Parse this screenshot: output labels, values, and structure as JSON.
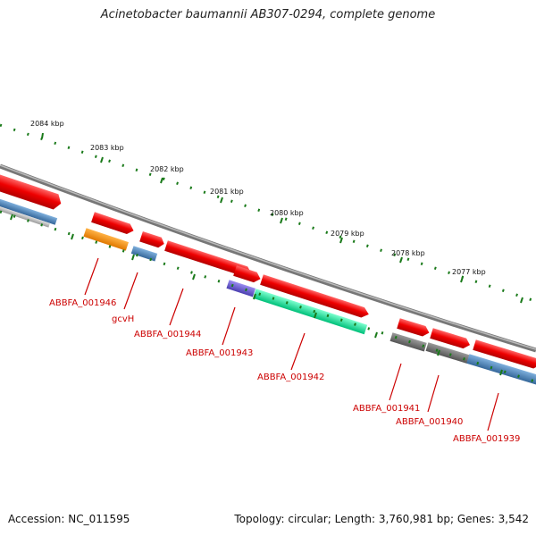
{
  "title": "Acinetobacter baumannii AB307-0294, complete genome",
  "footer": {
    "accession": "Accession: NC_011595",
    "stats": "Topology: circular; Length: 3,760,981 bp; Genes: 3,542"
  },
  "scale_labels": [
    "2084 kbp",
    "2083 kbp",
    "2082 kbp",
    "2081 kbp",
    "2080 kbp",
    "2079 kbp",
    "2078 kbp",
    "2077 kbp"
  ],
  "gene_labels": [
    "ABBFA_001946",
    "gcvH",
    "ABBFA_001944",
    "ABBFA_001943",
    "ABBFA_001942",
    "ABBFA_001941",
    "ABBFA_001940",
    "ABBFA_001939"
  ],
  "colors": {
    "cds": "#ff0000",
    "trna_grey": "#666666",
    "blue": "#4682b4",
    "orange": "#ff8c00",
    "purple": "#6a5acd",
    "green": "#00ee99",
    "label": "#cc0000",
    "tick": "#1a7a1a",
    "backbone": "#888888"
  }
}
